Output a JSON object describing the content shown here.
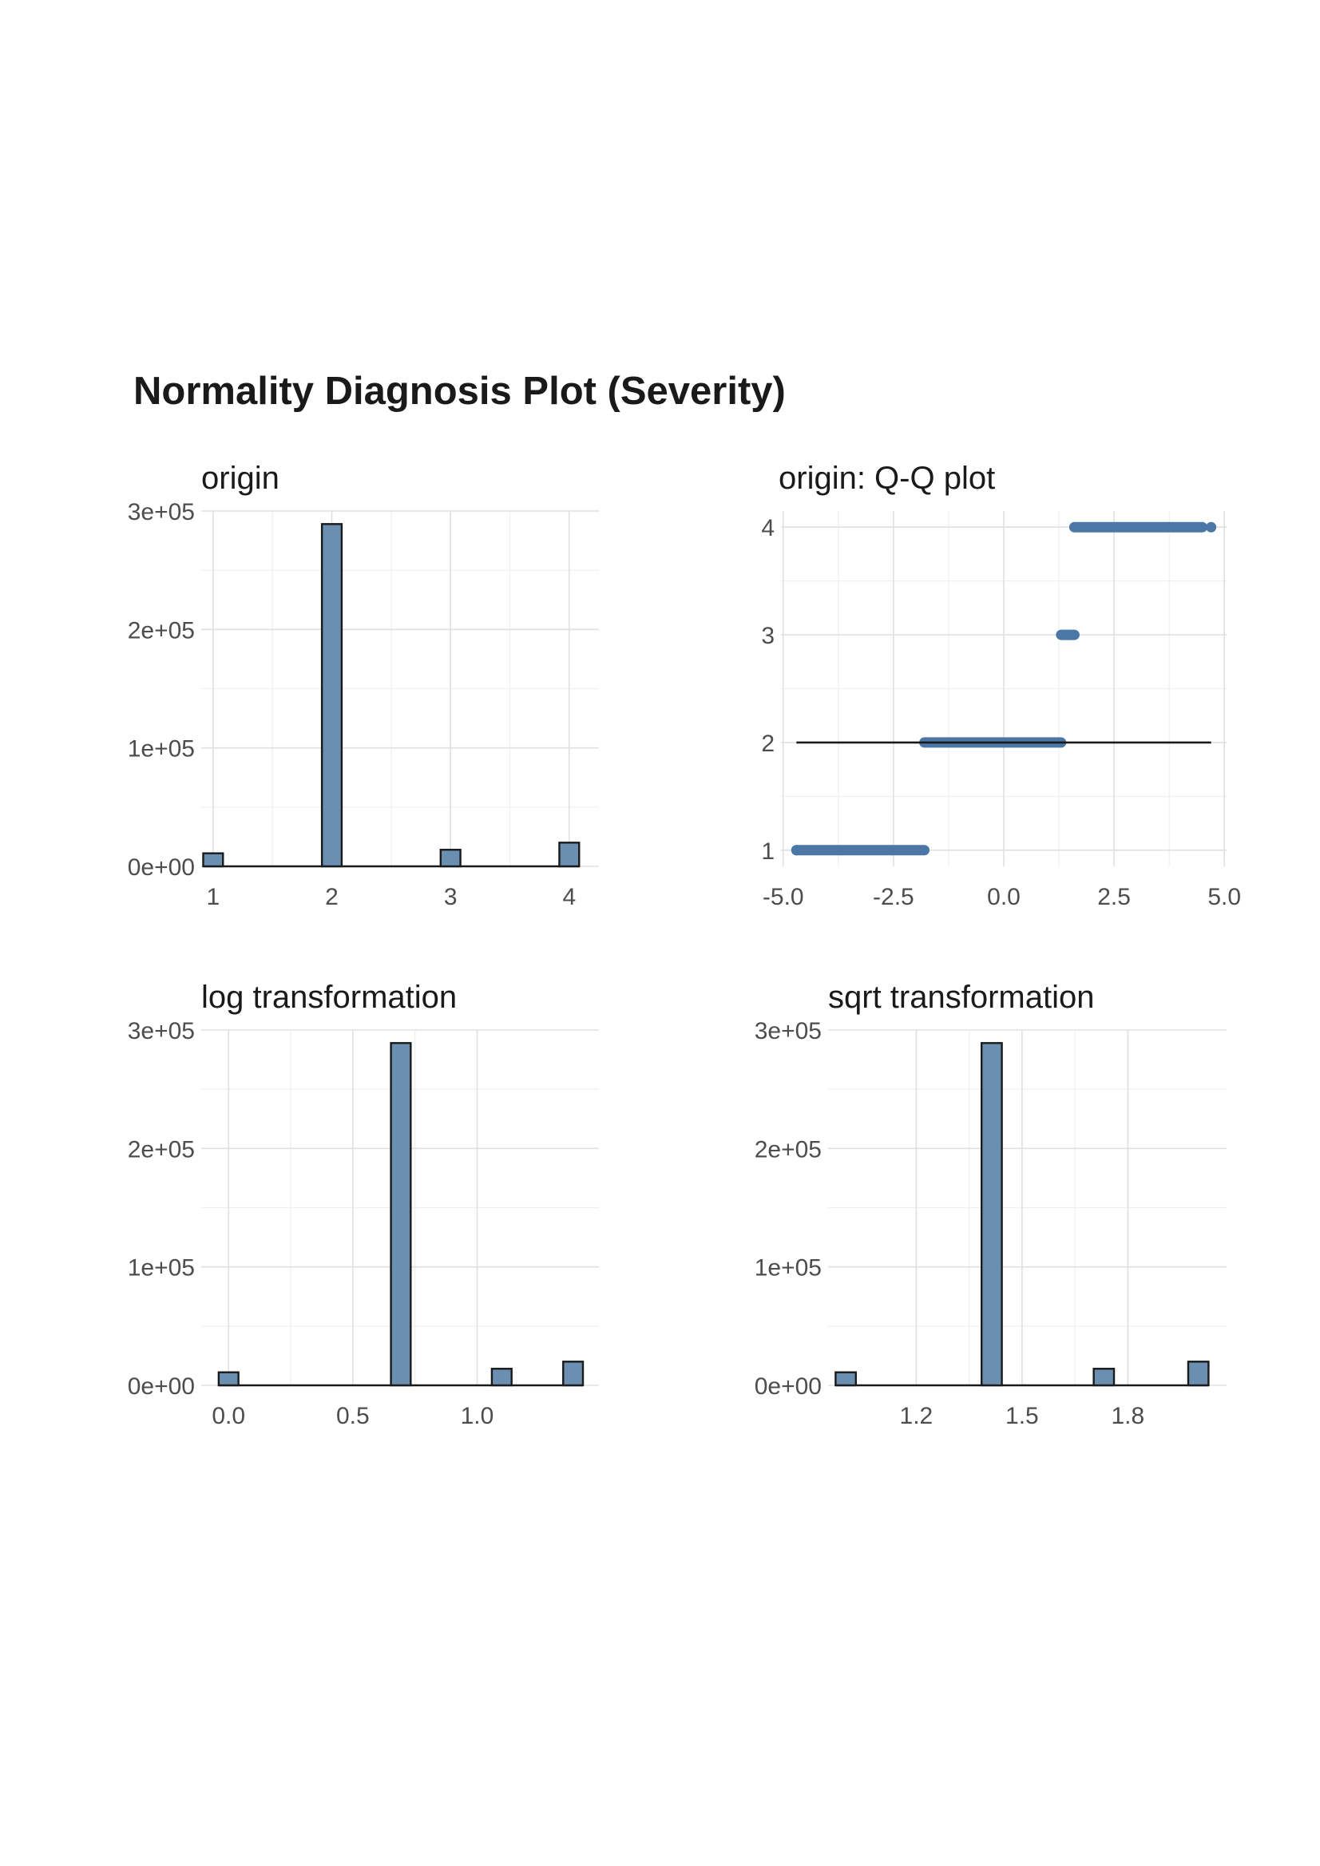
{
  "page": {
    "title": "Normality Diagnosis Plot (Severity)"
  },
  "colors": {
    "fill": "#6a8fb0",
    "stroke": "#1a1a1a",
    "point": "#4a77a6",
    "grid": "#e0e0e0"
  },
  "chart_data": [
    {
      "id": "origin",
      "type": "bar",
      "title": "origin",
      "xlim": [
        0.9,
        4.25
      ],
      "ylim": [
        0,
        300000
      ],
      "x_ticks": [
        1,
        2,
        3,
        4
      ],
      "x_tick_labels": [
        "1",
        "2",
        "3",
        "4"
      ],
      "y_ticks": [
        0,
        100000,
        200000,
        300000
      ],
      "y_tick_labels": [
        "0e+00",
        "1e+05",
        "2e+05",
        "3e+05"
      ],
      "bin_width": 0.1667,
      "bars": [
        {
          "x": 1,
          "value": 11000
        },
        {
          "x": 2,
          "value": 289000
        },
        {
          "x": 3,
          "value": 14000
        },
        {
          "x": 4,
          "value": 20000
        }
      ]
    },
    {
      "id": "qq",
      "type": "scatter",
      "title": "origin: Q-Q plot",
      "xlim": [
        -5.05,
        5.05
      ],
      "ylim": [
        0.85,
        4.15
      ],
      "x_ticks": [
        -5,
        -2.5,
        0,
        2.5,
        5
      ],
      "x_tick_labels": [
        "-5.0",
        "-2.5",
        "0.0",
        "2.5",
        "5.0"
      ],
      "y_ticks": [
        1,
        2,
        3,
        4
      ],
      "y_tick_labels": [
        "1",
        "2",
        "3",
        "4"
      ],
      "reference_line": {
        "x": [
          -4.7,
          4.7
        ],
        "y": [
          2,
          2
        ]
      },
      "point_groups": [
        {
          "y": 1,
          "x_range": [
            -4.7,
            -1.8
          ],
          "outlier_x": [
            -4.7
          ]
        },
        {
          "y": 2,
          "x_range": [
            -1.8,
            1.3
          ]
        },
        {
          "y": 3,
          "x_range": [
            1.3,
            1.6
          ]
        },
        {
          "y": 4,
          "x_range": [
            1.6,
            4.5
          ],
          "outlier_x": [
            4.7
          ]
        }
      ]
    },
    {
      "id": "log",
      "type": "bar",
      "title": "log transformation",
      "xlim": [
        -0.11,
        1.49
      ],
      "ylim": [
        0,
        300000
      ],
      "x_ticks": [
        0,
        0.5,
        1.0
      ],
      "x_tick_labels": [
        "0.0",
        "0.5",
        "1.0"
      ],
      "y_ticks": [
        0,
        100000,
        200000,
        300000
      ],
      "y_tick_labels": [
        "0e+00",
        "1e+05",
        "2e+05",
        "3e+05"
      ],
      "bin_width": 0.0795,
      "bars": [
        {
          "x": 0,
          "value": 11000
        },
        {
          "x": 0.693,
          "value": 289000
        },
        {
          "x": 1.099,
          "value": 14000
        },
        {
          "x": 1.386,
          "value": 20000
        }
      ]
    },
    {
      "id": "sqrt",
      "type": "bar",
      "title": "sqrt transformation",
      "xlim": [
        0.95,
        2.08
      ],
      "ylim": [
        0,
        300000
      ],
      "x_ticks": [
        1.2,
        1.5,
        1.8
      ],
      "x_tick_labels": [
        "1.2",
        "1.5",
        "1.8"
      ],
      "y_ticks": [
        0,
        100000,
        200000,
        300000
      ],
      "y_tick_labels": [
        "0e+00",
        "1e+05",
        "2e+05",
        "3e+05"
      ],
      "bin_width": 0.0575,
      "bars": [
        {
          "x": 1,
          "value": 11000
        },
        {
          "x": 1.414,
          "value": 289000
        },
        {
          "x": 1.732,
          "value": 14000
        },
        {
          "x": 2,
          "value": 20000
        }
      ]
    }
  ]
}
